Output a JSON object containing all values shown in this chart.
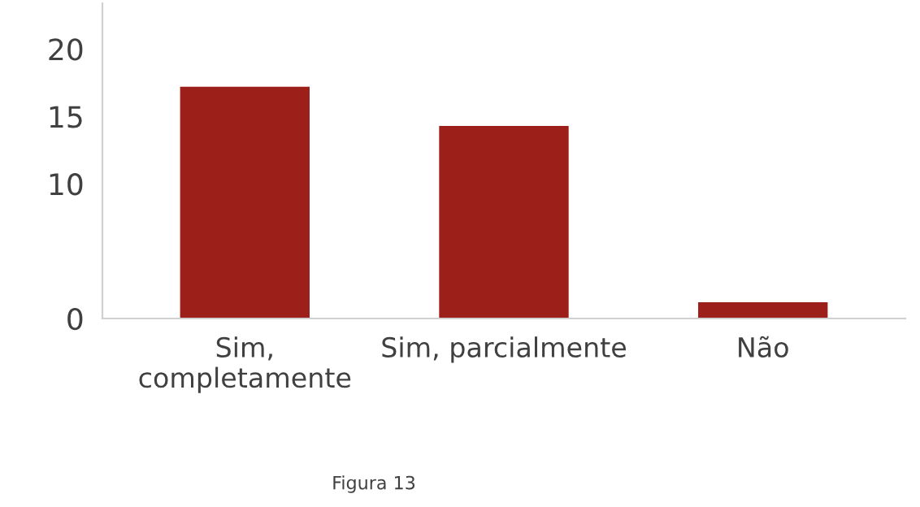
{
  "chart_data": {
    "type": "bar",
    "categories": [
      "Sim,\ncompletamente",
      "Sim, parcialmente",
      "Não"
    ],
    "values": [
      17.2,
      14.3,
      1.2
    ],
    "color": "#9c1f1a",
    "ylim": [
      0,
      23.4
    ],
    "yticks": [
      0,
      10,
      15,
      20
    ],
    "grid": false,
    "annotations": [
      "Figura 13"
    ]
  }
}
